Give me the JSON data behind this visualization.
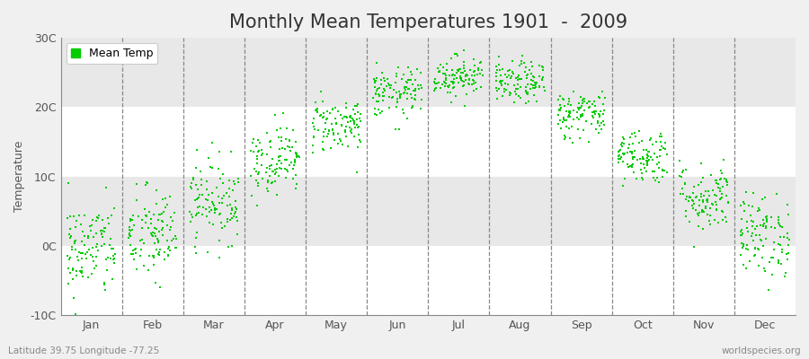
{
  "title": "Monthly Mean Temperatures 1901  -  2009",
  "ylabel": "Temperature",
  "ylim": [
    -10,
    30
  ],
  "yticks": [
    -10,
    0,
    10,
    20,
    30
  ],
  "ytick_labels": [
    "-10C",
    "0C",
    "10C",
    "20C",
    "30C"
  ],
  "months": [
    "Jan",
    "Feb",
    "Mar",
    "Apr",
    "May",
    "Jun",
    "Jul",
    "Aug",
    "Sep",
    "Oct",
    "Nov",
    "Dec"
  ],
  "dot_color": "#00cc00",
  "dot_size": 2.5,
  "background_color": "#f0f0f0",
  "plot_bg_color": "#ffffff",
  "legend_label": "Mean Temp",
  "bottom_left_text": "Latitude 39.75 Longitude -77.25",
  "bottom_right_text": "worldspecies.org",
  "title_fontsize": 15,
  "label_fontsize": 9,
  "tick_fontsize": 9,
  "monthly_means": [
    -0.5,
    1.5,
    6.5,
    12.5,
    17.5,
    22.0,
    24.5,
    23.5,
    19.0,
    13.0,
    7.0,
    1.5
  ],
  "monthly_stds": [
    3.5,
    3.5,
    3.0,
    2.5,
    2.0,
    1.8,
    1.5,
    1.5,
    1.8,
    2.0,
    2.5,
    3.0
  ],
  "n_years": 109,
  "seed": 42,
  "band_color_1": "#ffffff",
  "band_color_2": "#e8e8e8"
}
